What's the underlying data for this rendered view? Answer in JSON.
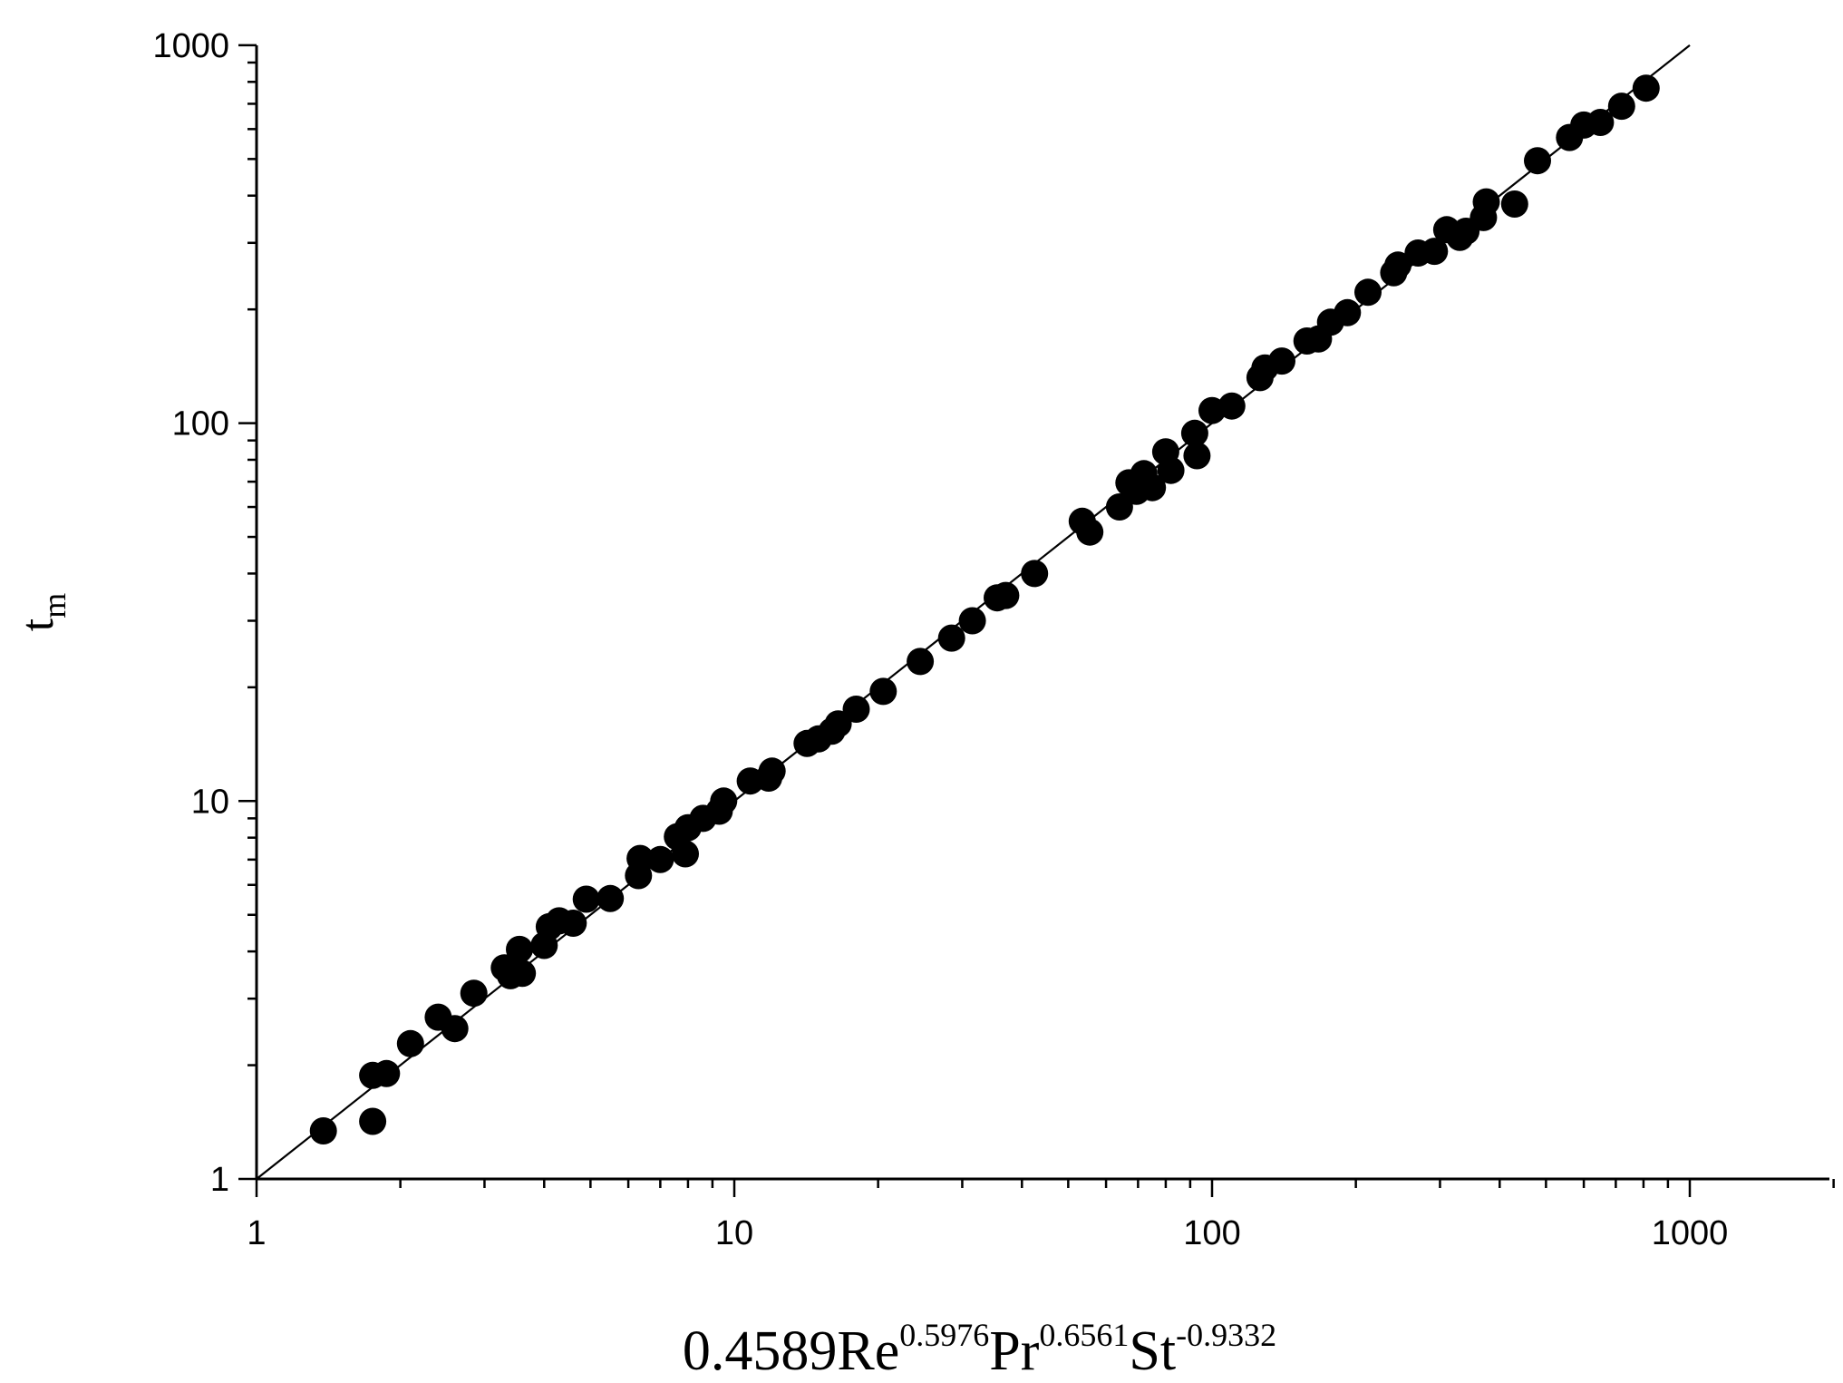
{
  "chart_data": {
    "type": "scatter",
    "title": "",
    "xlabel": {
      "parts": [
        {
          "text": "0.4589Re",
          "style": "normal"
        },
        {
          "text": "0.5976",
          "style": "sup"
        },
        {
          "text": "Pr",
          "style": "normal"
        },
        {
          "text": "0.6561",
          "style": "sup"
        },
        {
          "text": "St",
          "style": "normal"
        },
        {
          "text": "-0.9332",
          "style": "sup"
        }
      ]
    },
    "ylabel": {
      "parts": [
        {
          "text": "t",
          "style": "normal"
        },
        {
          "text": "m",
          "style": "sub"
        }
      ]
    },
    "x_scale": "log",
    "y_scale": "log",
    "xlim": [
      1,
      2000
    ],
    "ylim": [
      1,
      1000
    ],
    "x_ticks": [
      {
        "value": 1,
        "label": "1"
      },
      {
        "value": 10,
        "label": "10"
      },
      {
        "value": 100,
        "label": "100"
      },
      {
        "value": 1000,
        "label": "1000"
      }
    ],
    "y_ticks": [
      {
        "value": 1,
        "label": "1"
      },
      {
        "value": 10,
        "label": "10"
      },
      {
        "value": 100,
        "label": "100"
      },
      {
        "value": 1000,
        "label": "1000"
      }
    ],
    "grid": false,
    "reference_line": {
      "x": [
        1,
        1000
      ],
      "y": [
        1,
        1000
      ]
    },
    "series": [
      {
        "marker": "filled-circle",
        "color": "#000000",
        "points": [
          [
            1.38,
            1.34
          ],
          [
            1.75,
            1.42
          ],
          [
            1.75,
            1.88
          ],
          [
            1.87,
            1.9
          ],
          [
            2.1,
            2.28
          ],
          [
            2.4,
            2.68
          ],
          [
            2.6,
            2.5
          ],
          [
            2.85,
            3.1
          ],
          [
            3.3,
            3.62
          ],
          [
            3.4,
            3.45
          ],
          [
            3.55,
            4.05
          ],
          [
            3.6,
            3.5
          ],
          [
            4.0,
            4.15
          ],
          [
            4.1,
            4.65
          ],
          [
            4.3,
            4.82
          ],
          [
            4.6,
            4.75
          ],
          [
            4.9,
            5.5
          ],
          [
            5.5,
            5.52
          ],
          [
            6.3,
            6.35
          ],
          [
            6.35,
            7.05
          ],
          [
            7.0,
            7.0
          ],
          [
            7.6,
            8.05
          ],
          [
            7.9,
            7.25
          ],
          [
            8.0,
            8.5
          ],
          [
            8.6,
            9.0
          ],
          [
            9.3,
            9.4
          ],
          [
            9.5,
            10.0
          ],
          [
            10.8,
            11.3
          ],
          [
            11.8,
            11.5
          ],
          [
            12.0,
            12.0
          ],
          [
            14.2,
            14.2
          ],
          [
            15.0,
            14.6
          ],
          [
            16.0,
            15.3
          ],
          [
            16.5,
            16.0
          ],
          [
            18.0,
            17.5
          ],
          [
            20.5,
            19.5
          ],
          [
            24.5,
            23.4
          ],
          [
            28.5,
            27.0
          ],
          [
            31.5,
            30.0
          ],
          [
            35.5,
            34.5
          ],
          [
            37.0,
            35.0
          ],
          [
            42.5,
            40.0
          ],
          [
            53.5,
            55.0
          ],
          [
            55.5,
            51.5
          ],
          [
            64.0,
            60.0
          ],
          [
            67.0,
            69.5
          ],
          [
            69.5,
            66.0
          ],
          [
            72.0,
            73.5
          ],
          [
            75.0,
            67.5
          ],
          [
            80.0,
            84.0
          ],
          [
            82.0,
            75.0
          ],
          [
            92.0,
            94.0
          ],
          [
            93.0,
            82.0
          ],
          [
            100.0,
            108.0
          ],
          [
            110.0,
            111.0
          ],
          [
            126.0,
            132.0
          ],
          [
            129.0,
            140.0
          ],
          [
            140.0,
            146.0
          ],
          [
            158.0,
            165.0
          ],
          [
            167.0,
            167.0
          ],
          [
            177.0,
            185.0
          ],
          [
            192.0,
            196.0
          ],
          [
            212.0,
            222.0
          ],
          [
            240.0,
            250.0
          ],
          [
            245.0,
            262.0
          ],
          [
            270.0,
            282.0
          ],
          [
            292.0,
            285.0
          ],
          [
            310.0,
            325.0
          ],
          [
            330.0,
            310.0
          ],
          [
            340.0,
            322.0
          ],
          [
            370.0,
            350.0
          ],
          [
            375.0,
            385.0
          ],
          [
            430.0,
            380.0
          ],
          [
            480.0,
            495.0
          ],
          [
            560.0,
            570.0
          ],
          [
            600.0,
            615.0
          ],
          [
            650.0,
            625.0
          ],
          [
            720.0,
            690.0
          ],
          [
            810.0,
            770.0
          ]
        ]
      }
    ]
  }
}
